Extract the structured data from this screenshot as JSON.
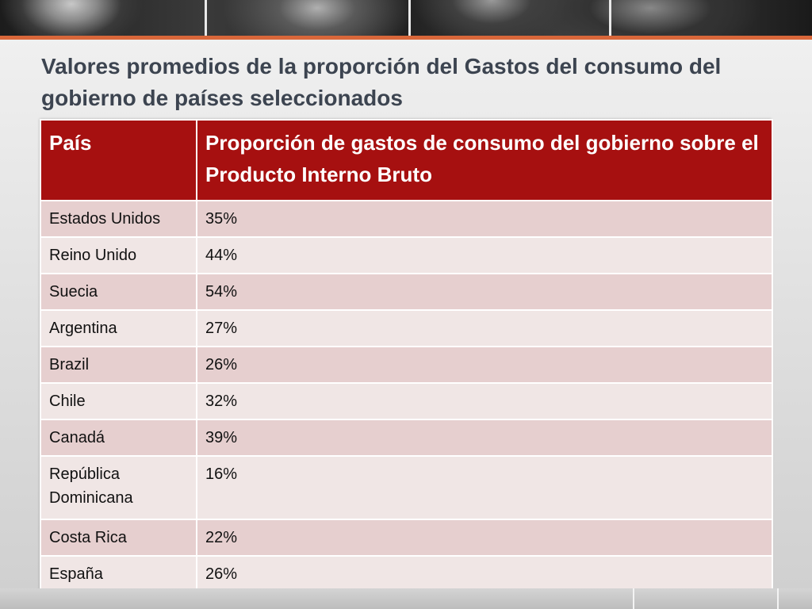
{
  "slide": {
    "title": "Valores promedios de la proporción del Gastos del consumo del gobierno de países seleccionados"
  },
  "table": {
    "headers": [
      "País",
      "Proporción de gastos de consumo del gobierno sobre el Producto Interno Bruto"
    ],
    "rows": [
      [
        "Estados Unidos",
        "35%"
      ],
      [
        "Reino Unido",
        "44%"
      ],
      [
        "Suecia",
        "54%"
      ],
      [
        "Argentina",
        "27%"
      ],
      [
        "Brazil",
        "26%"
      ],
      [
        "Chile",
        "32%"
      ],
      [
        "Canadá",
        "39%"
      ],
      [
        "República Dominicana",
        "16%"
      ],
      [
        "Costa Rica",
        "22%"
      ],
      [
        "España",
        "26%"
      ]
    ]
  },
  "colors": {
    "header_bg": "#a61010",
    "row_odd": "#e6cfcf",
    "row_even": "#f0e6e5",
    "accent_bar": "#d9673a",
    "title_text": "#3c4450"
  }
}
